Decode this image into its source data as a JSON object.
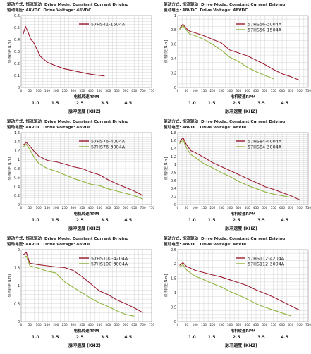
{
  "common": {
    "drive_mode_cn": "驱动方式: 恒流驱动",
    "drive_mode_en": "Drive Mode: Constant Current Driving",
    "drive_voltage_cn": "驱动电压: 48VDC",
    "drive_voltage_en": "Drive Voltage: 48VDC",
    "ylabel": "保持转矩[N.m]",
    "xlabel": "电机转速RPM",
    "pulse_label": "脉冲速度 (KHZ)",
    "pulse_ticks": [
      "1.0",
      "1.5",
      "2.5",
      "3.5",
      "4.5"
    ],
    "x_ticks": [
      "0",
      "50",
      "100",
      "150",
      "200",
      "250",
      "300",
      "350",
      "400",
      "450",
      "500",
      "550",
      "600",
      "650",
      "700",
      "750"
    ],
    "colors": {
      "red": "#9b1b30",
      "green": "#8fb43a",
      "grid": "#b8b8b8"
    }
  },
  "chart_data": [
    {
      "type": "line",
      "ylim": [
        0,
        0.6
      ],
      "yticks": [
        "0",
        "0.1",
        "0.2",
        "0.3",
        "0.4",
        "0.5",
        "0.6"
      ],
      "xlim": [
        0,
        750
      ],
      "series": [
        {
          "name": "57HS41-1504A",
          "color": "red",
          "x": [
            10,
            25,
            40,
            55,
            70,
            90,
            110,
            150,
            200,
            250,
            300,
            350,
            400,
            450,
            480
          ],
          "y": [
            0.44,
            0.51,
            0.46,
            0.4,
            0.38,
            0.32,
            0.26,
            0.21,
            0.18,
            0.155,
            0.14,
            0.125,
            0.11,
            0.1,
            0.095
          ]
        }
      ]
    },
    {
      "type": "line",
      "ylim": [
        0,
        1
      ],
      "yticks": [
        "0",
        "0.2",
        "0.4",
        "0.6",
        "0.8",
        "1"
      ],
      "xlim": [
        0,
        750
      ],
      "series": [
        {
          "name": "57HS56-3004A",
          "color": "red",
          "x": [
            10,
            30,
            50,
            70,
            100,
            150,
            200,
            250,
            300,
            350,
            400,
            450,
            500,
            550,
            600,
            650,
            700
          ],
          "y": [
            0.82,
            0.88,
            0.82,
            0.78,
            0.76,
            0.72,
            0.67,
            0.62,
            0.52,
            0.48,
            0.44,
            0.38,
            0.32,
            0.25,
            0.19,
            0.15,
            0.1
          ]
        },
        {
          "name": "57HS56-1504A",
          "color": "green",
          "x": [
            10,
            30,
            50,
            70,
            100,
            150,
            200,
            250,
            300,
            350,
            400,
            450,
            500,
            550
          ],
          "y": [
            0.8,
            0.86,
            0.8,
            0.74,
            0.72,
            0.67,
            0.6,
            0.52,
            0.42,
            0.36,
            0.28,
            0.22,
            0.17,
            0.12
          ]
        }
      ]
    },
    {
      "type": "line",
      "ylim": [
        0,
        1.6
      ],
      "yticks": [
        "0",
        "0.2",
        "0.4",
        "0.6",
        "0.8",
        "1",
        "1.2",
        "1.4",
        "1.6"
      ],
      "xlim": [
        0,
        750
      ],
      "series": [
        {
          "name": "57HS76-4004A",
          "color": "red",
          "x": [
            10,
            30,
            50,
            75,
            100,
            150,
            200,
            250,
            300,
            350,
            400,
            450,
            500,
            550,
            600,
            650,
            700
          ],
          "y": [
            1.32,
            1.38,
            1.3,
            1.18,
            1.08,
            0.98,
            0.95,
            0.9,
            0.84,
            0.8,
            0.72,
            0.66,
            0.55,
            0.46,
            0.38,
            0.3,
            0.2
          ]
        },
        {
          "name": "57HS76-3004A",
          "color": "green",
          "x": [
            10,
            30,
            50,
            75,
            100,
            150,
            200,
            250,
            300,
            350,
            400,
            450,
            500,
            550,
            600,
            650,
            700
          ],
          "y": [
            1.28,
            1.34,
            1.22,
            1.05,
            0.92,
            0.8,
            0.74,
            0.66,
            0.58,
            0.52,
            0.45,
            0.42,
            0.35,
            0.3,
            0.25,
            0.2,
            0.12
          ]
        }
      ]
    },
    {
      "type": "line",
      "ylim": [
        0,
        1.8
      ],
      "yticks": [
        "0",
        "0.2",
        "0.4",
        "0.6",
        "0.8",
        "1",
        "1.2",
        "1.4",
        "1.6",
        "1.8"
      ],
      "xlim": [
        0,
        750
      ],
      "series": [
        {
          "name": "57HS84-4004A",
          "color": "red",
          "x": [
            10,
            30,
            50,
            75,
            100,
            150,
            200,
            250,
            300,
            350,
            400,
            450,
            500,
            550,
            600,
            650,
            700
          ],
          "y": [
            1.55,
            1.68,
            1.5,
            1.35,
            1.3,
            1.18,
            1.05,
            0.95,
            0.85,
            0.75,
            0.65,
            0.55,
            0.45,
            0.38,
            0.3,
            0.22,
            0.12
          ]
        },
        {
          "name": "57HS84-3004A",
          "color": "green",
          "x": [
            10,
            30,
            50,
            75,
            100,
            150,
            200,
            250,
            300,
            350,
            400,
            450,
            500,
            550,
            600,
            650
          ],
          "y": [
            1.52,
            1.62,
            1.42,
            1.25,
            1.18,
            1.02,
            0.92,
            0.8,
            0.7,
            0.58,
            0.48,
            0.4,
            0.32,
            0.26,
            0.22,
            0.18
          ]
        }
      ]
    },
    {
      "type": "line",
      "ylim": [
        0,
        2
      ],
      "yticks": [
        "0",
        "0.5",
        "1",
        "1.5",
        "2"
      ],
      "xlim": [
        0,
        750
      ],
      "series": [
        {
          "name": "57HS100-4204A",
          "color": "red",
          "x": [
            10,
            30,
            50,
            75,
            100,
            150,
            200,
            250,
            300,
            350,
            400,
            450,
            500,
            550,
            600,
            650,
            700
          ],
          "y": [
            1.85,
            1.92,
            1.62,
            1.6,
            1.58,
            1.55,
            1.52,
            1.5,
            1.42,
            1.25,
            1.05,
            0.85,
            0.75,
            0.6,
            0.5,
            0.38,
            0.25
          ]
        },
        {
          "name": "57HS100-3004A",
          "color": "green",
          "x": [
            10,
            30,
            50,
            75,
            100,
            150,
            200,
            250,
            300,
            350,
            400,
            450,
            500,
            550,
            600,
            650
          ],
          "y": [
            1.78,
            1.82,
            1.55,
            1.52,
            1.48,
            1.4,
            1.35,
            1.1,
            0.95,
            0.8,
            0.65,
            0.52,
            0.42,
            0.3,
            0.2,
            0.15
          ]
        }
      ]
    },
    {
      "type": "line",
      "ylim": [
        0,
        2.5
      ],
      "yticks": [
        "0",
        "0.5",
        "1",
        "1.5",
        "2",
        "2.5"
      ],
      "xlim": [
        0,
        750
      ],
      "series": [
        {
          "name": "57HS112-4204A",
          "color": "red",
          "x": [
            10,
            30,
            50,
            75,
            100,
            150,
            200,
            250,
            300,
            350,
            400,
            450,
            500,
            550,
            600,
            650,
            700
          ],
          "y": [
            1.95,
            2.05,
            1.92,
            1.85,
            1.78,
            1.7,
            1.62,
            1.55,
            1.45,
            1.35,
            1.25,
            1.1,
            0.98,
            0.85,
            0.7,
            0.55,
            0.4
          ]
        },
        {
          "name": "57HS112-3004A",
          "color": "green",
          "x": [
            10,
            30,
            50,
            75,
            100,
            150,
            200,
            250,
            300,
            350,
            400,
            450,
            500,
            550,
            600,
            650
          ],
          "y": [
            1.9,
            1.98,
            1.8,
            1.68,
            1.58,
            1.45,
            1.32,
            1.2,
            1.05,
            0.92,
            0.78,
            0.62,
            0.5,
            0.4,
            0.3,
            0.2
          ]
        }
      ]
    }
  ]
}
